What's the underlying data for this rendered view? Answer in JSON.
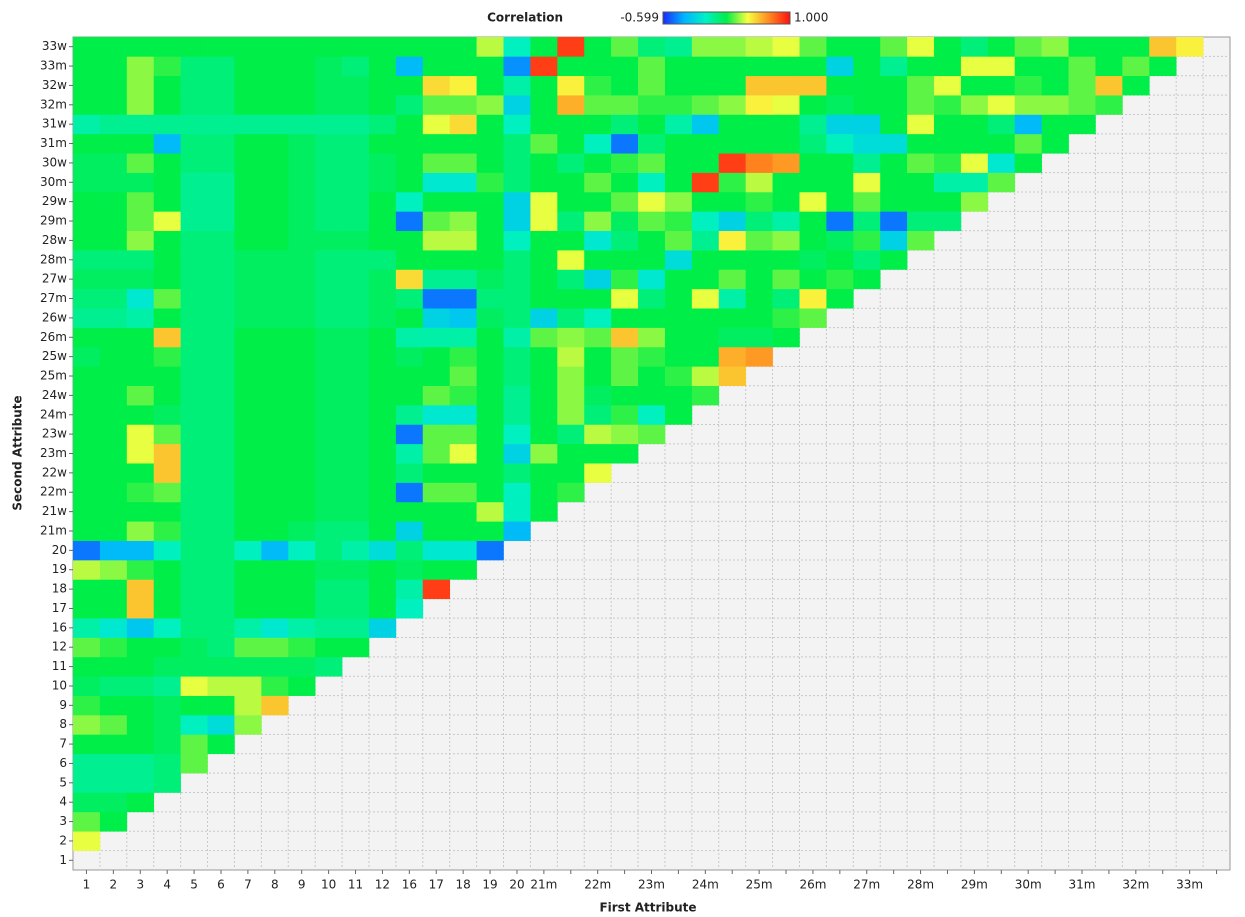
{
  "chart_data": {
    "type": "heatmap",
    "colorbar_label": "Correlation",
    "clim": [
      -0.599,
      1
    ],
    "cticks": [
      -0.599,
      {
        "value": 1,
        "label": "1.000"
      }
    ],
    "colors": [
      "#1a2aff",
      "#00b4ff",
      "#00f0c8",
      "#00ee48",
      "#f8ff40",
      "#ff8a20",
      "#ff1010"
    ],
    "x_label": "First Attribute",
    "y_label": "Second Attribute",
    "x_categories": [
      "1",
      "2",
      "3",
      "4",
      "5",
      "6",
      "7",
      "8",
      "9",
      "10",
      "11",
      "12",
      "16",
      "17",
      "18",
      "19",
      "20",
      "21m",
      null,
      "22m",
      null,
      "23m",
      null,
      "24m",
      null,
      "25m",
      null,
      "26m",
      null,
      "27m",
      null,
      "28m",
      null,
      "29m",
      null,
      "30m",
      null,
      "31m",
      null,
      "32m",
      null,
      "33m",
      null
    ],
    "y_categories": [
      "1",
      "2",
      "3",
      "4",
      "5",
      "6",
      "7",
      "8",
      "9",
      "10",
      "11",
      "12",
      "16",
      "17",
      "18",
      "19",
      "20",
      "21m",
      "21w",
      "22m",
      "22w",
      "23m",
      "23w",
      "24m",
      "24w",
      "25m",
      "25w",
      "26m",
      "26w",
      "27m",
      "27w",
      "28m",
      "28w",
      "29m",
      "29w",
      "30m",
      "30w",
      "31m",
      "31w",
      "32m",
      "32w",
      "33m",
      "33w"
    ],
    "values": [
      [],
      [
        0.45
      ],
      [
        0.3,
        0.2
      ],
      [
        0.15,
        0.15,
        0.2
      ],
      [
        0.05,
        0.05,
        0.05,
        0.1
      ],
      [
        0.05,
        0.05,
        0.05,
        0.1,
        0.3
      ],
      [
        0.2,
        0.2,
        0.2,
        0.15,
        0.3,
        0.2
      ],
      [
        0.35,
        0.3,
        0.2,
        0.15,
        -0.05,
        -0.15,
        0.35
      ],
      [
        0.25,
        0.2,
        0.2,
        0.15,
        0.2,
        0.2,
        0.4,
        0.6
      ],
      [
        0.15,
        0.1,
        0.1,
        0.05,
        0.45,
        0.4,
        0.4,
        0.25,
        0.2
      ],
      [
        0.2,
        0.2,
        0.2,
        0.15,
        0.15,
        0.15,
        0.15,
        0.15,
        0.15,
        0.1
      ],
      [
        0.3,
        0.25,
        0.2,
        0.2,
        0.15,
        0.1,
        0.3,
        0.3,
        0.25,
        0.2,
        0.2
      ],
      [
        0,
        -0.1,
        -0.25,
        -0.05,
        0.1,
        0.1,
        0,
        -0.1,
        0,
        0.05,
        0.05,
        -0.2
      ],
      [
        0.2,
        0.2,
        0.6,
        0.2,
        0.1,
        0.1,
        0.2,
        0.2,
        0.2,
        0.1,
        0.1,
        0.2,
        -0.05
      ],
      [
        0.2,
        0.2,
        0.6,
        0.2,
        0.1,
        0.1,
        0.2,
        0.2,
        0.2,
        0.1,
        0.1,
        0.2,
        0,
        0.9
      ],
      [
        0.4,
        0.35,
        0.25,
        0.2,
        0.1,
        0.1,
        0.2,
        0.2,
        0.2,
        0.15,
        0.15,
        0.2,
        0.15,
        0.2,
        0.2
      ],
      [
        -0.45,
        -0.3,
        -0.3,
        -0.05,
        0.1,
        0.1,
        -0.05,
        -0.3,
        -0.05,
        0.1,
        0,
        -0.15,
        0.1,
        -0.1,
        -0.1,
        -0.45
      ],
      [
        0.2,
        0.2,
        0.35,
        0.25,
        0.1,
        0.1,
        0.2,
        0.2,
        0.15,
        0.1,
        0.1,
        0.2,
        -0.2,
        0.2,
        0.2,
        0.2,
        -0.3
      ],
      [
        0.2,
        0.2,
        0.2,
        0.2,
        0.1,
        0.1,
        0.2,
        0.2,
        0.2,
        0.15,
        0.15,
        0.2,
        0.2,
        0.2,
        0.2,
        0.4,
        -0.05,
        0.2
      ],
      [
        0.2,
        0.2,
        0.25,
        0.3,
        0.1,
        0.1,
        0.2,
        0.2,
        0.2,
        0.15,
        0.15,
        0.2,
        -0.45,
        0.3,
        0.3,
        0.2,
        -0.05,
        0.2,
        0.25
      ],
      [
        0.2,
        0.2,
        0.2,
        0.6,
        0.1,
        0.1,
        0.2,
        0.2,
        0.2,
        0.15,
        0.15,
        0.2,
        0.1,
        0.2,
        0.2,
        0.2,
        0.1,
        0.2,
        0.2,
        0.45
      ],
      [
        0.2,
        0.2,
        0.45,
        0.6,
        0.1,
        0.1,
        0.2,
        0.2,
        0.2,
        0.15,
        0.15,
        0.2,
        0,
        0.3,
        0.45,
        0.2,
        -0.2,
        0.35,
        0.2,
        0.2,
        0.2
      ],
      [
        0.2,
        0.2,
        0.45,
        0.3,
        0.1,
        0.1,
        0.2,
        0.2,
        0.2,
        0.15,
        0.15,
        0.2,
        -0.45,
        0.3,
        0.3,
        0.2,
        -0.05,
        0.2,
        0.1,
        0.4,
        0.35,
        0.3
      ],
      [
        0.2,
        0.2,
        0.2,
        0.15,
        0.1,
        0.1,
        0.2,
        0.2,
        0.2,
        0.15,
        0.15,
        0.2,
        0.05,
        -0.1,
        -0.1,
        0.2,
        0.05,
        0.2,
        0.35,
        0.1,
        0.25,
        -0.05,
        0.2
      ],
      [
        0.2,
        0.2,
        0.3,
        0.2,
        0.1,
        0.1,
        0.2,
        0.2,
        0.2,
        0.15,
        0.15,
        0.2,
        0.2,
        0.3,
        0.25,
        0.2,
        0.05,
        0.2,
        0.35,
        0.15,
        0.2,
        0.2,
        0.2,
        0.25
      ],
      [
        0.2,
        0.2,
        0.2,
        0.2,
        0.1,
        0.1,
        0.2,
        0.2,
        0.2,
        0.15,
        0.15,
        0.2,
        0.2,
        0.2,
        0.3,
        0.2,
        0.1,
        0.2,
        0.35,
        0.2,
        0.3,
        0.2,
        0.25,
        0.4,
        0.6
      ],
      [
        0.15,
        0.2,
        0.2,
        0.25,
        0.1,
        0.1,
        0.2,
        0.2,
        0.2,
        0.15,
        0.15,
        0.2,
        0.15,
        0.2,
        0.25,
        0.2,
        0.1,
        0.2,
        0.4,
        0.2,
        0.3,
        0.25,
        0.2,
        0.2,
        0.65,
        0.7
      ],
      [
        0.2,
        0.2,
        0.2,
        0.6,
        0.1,
        0.1,
        0.2,
        0.2,
        0.2,
        0.15,
        0.15,
        0.2,
        0,
        0,
        0,
        0.2,
        0,
        0.3,
        0.35,
        0.3,
        0.6,
        0.35,
        0.2,
        0.2,
        0.15,
        0.15,
        0.2
      ],
      [
        0.05,
        0.05,
        0,
        0.2,
        0.1,
        0.1,
        0.15,
        0.15,
        0.15,
        0.1,
        0.1,
        0.15,
        0.2,
        -0.2,
        -0.25,
        0.15,
        0.1,
        -0.2,
        0.1,
        -0.05,
        0.2,
        0.2,
        0.2,
        0.2,
        0.2,
        0.2,
        0.25,
        0.3
      ],
      [
        0.1,
        0.1,
        -0.1,
        0.3,
        0.1,
        0.1,
        0.15,
        0.15,
        0.15,
        0.1,
        0.1,
        0.15,
        0.1,
        -0.45,
        -0.45,
        0.1,
        0.1,
        0.2,
        0.2,
        0.2,
        0.45,
        0.1,
        0.2,
        0.45,
        0,
        0.2,
        0.1,
        0.5,
        0.2
      ],
      [
        0.15,
        0.15,
        0.15,
        0.2,
        0.1,
        0.1,
        0.15,
        0.15,
        0.15,
        0.1,
        0.1,
        0.15,
        0.55,
        0.05,
        0.05,
        0.15,
        0.1,
        0.2,
        0.1,
        -0.2,
        0.25,
        -0.1,
        0.2,
        0.2,
        0.3,
        0.2,
        0.3,
        0.2,
        0.25,
        0.2
      ],
      [
        0.1,
        0.1,
        0.1,
        0.2,
        0.1,
        0.1,
        0.15,
        0.15,
        0.15,
        0.1,
        0.1,
        0.1,
        0.2,
        0.2,
        0.2,
        0.2,
        0.1,
        0.2,
        0.45,
        0.2,
        0.2,
        0.2,
        -0.15,
        0.2,
        0.2,
        0.2,
        0.2,
        0.15,
        0.2,
        0.1,
        0.2
      ],
      [
        0.2,
        0.2,
        0.35,
        0.2,
        0.1,
        0.1,
        0.2,
        0.2,
        0.15,
        0.15,
        0.15,
        0.2,
        0.2,
        0.4,
        0.4,
        0.2,
        -0.05,
        0.2,
        0.2,
        -0.1,
        0.1,
        0.2,
        0.3,
        0.05,
        0.5,
        0.3,
        0.35,
        0.2,
        0.15,
        0.25,
        -0.2,
        0.3
      ],
      [
        0.2,
        0.2,
        0.3,
        0.45,
        0.05,
        0.05,
        0.2,
        0.2,
        0.15,
        0.1,
        0.1,
        0.2,
        -0.45,
        0.3,
        0.35,
        0.2,
        -0.2,
        0.45,
        0.1,
        0.35,
        0.15,
        0.3,
        0.25,
        -0.05,
        -0.2,
        0.1,
        0,
        0.2,
        -0.45,
        0.1,
        -0.45,
        0.1,
        0.1
      ],
      [
        0.2,
        0.2,
        0.3,
        0.2,
        0.05,
        0.05,
        0.2,
        0.2,
        0.15,
        0.1,
        0.1,
        0.2,
        -0.05,
        0.2,
        0.2,
        0.2,
        -0.2,
        0.45,
        0.2,
        0.2,
        0.3,
        0.45,
        0.35,
        0.2,
        0.2,
        0.25,
        0.2,
        0.45,
        0.2,
        0.3,
        0.2,
        0.2,
        0.2,
        0.35
      ],
      [
        0.15,
        0.15,
        0.15,
        0.2,
        0.05,
        0.05,
        0.2,
        0.2,
        0.15,
        0.1,
        0.1,
        0.15,
        0.2,
        -0.1,
        -0.1,
        0.25,
        0.1,
        0.2,
        0.2,
        0.3,
        0.2,
        -0.05,
        0.2,
        0.9,
        0.25,
        0.4,
        0.2,
        0.2,
        0.2,
        0.45,
        0.2,
        0.2,
        0,
        0,
        0.3
      ],
      [
        0.15,
        0.15,
        0.3,
        0.2,
        0.1,
        0.1,
        0.2,
        0.2,
        0.15,
        0.1,
        0.1,
        0.15,
        0.2,
        0.3,
        0.3,
        0.2,
        0.1,
        0.2,
        0.1,
        0.2,
        0.25,
        0.3,
        0.2,
        0.2,
        0.9,
        0.75,
        0.7,
        0.2,
        0.2,
        0.05,
        0.2,
        0.3,
        0.25,
        0.45,
        -0.1,
        0.2
      ],
      [
        0.2,
        0.2,
        0.2,
        -0.3,
        0.1,
        0.1,
        0.2,
        0.2,
        0.15,
        0.1,
        0.1,
        0.2,
        0.2,
        0.2,
        0.2,
        0.2,
        0.1,
        0.3,
        0.2,
        -0.05,
        -0.45,
        0.1,
        0.2,
        0.2,
        0.2,
        0.2,
        0.2,
        0.1,
        -0.05,
        -0.15,
        -0.15,
        0.2,
        0.2,
        0.2,
        0.2,
        0.3,
        0.2
      ],
      [
        0,
        0.05,
        0.05,
        0.05,
        0.05,
        0.05,
        0.05,
        0.05,
        0.05,
        0.05,
        0.05,
        0.1,
        0.2,
        0.45,
        0.55,
        0.2,
        -0.05,
        0.2,
        0.2,
        0.2,
        0.1,
        0.2,
        0,
        -0.25,
        0.2,
        0.2,
        0.2,
        0.05,
        -0.2,
        -0.2,
        0.2,
        0.45,
        0.2,
        0.2,
        0.1,
        -0.3,
        0.2,
        0.2
      ],
      [
        0.2,
        0.2,
        0.35,
        0.2,
        0.1,
        0.1,
        0.2,
        0.2,
        0.2,
        0.15,
        0.15,
        0.2,
        0.1,
        0.3,
        0.3,
        0.35,
        -0.2,
        0.2,
        0.65,
        0.3,
        0.3,
        0.25,
        0.25,
        0.3,
        0.35,
        0.5,
        0.45,
        0.2,
        0.15,
        0.2,
        0.2,
        0.3,
        0.25,
        0.35,
        0.45,
        0.35,
        0.35,
        0.3,
        0.25
      ],
      [
        0.2,
        0.2,
        0.35,
        0.2,
        0.1,
        0.1,
        0.2,
        0.2,
        0.2,
        0.15,
        0.15,
        0.2,
        0.2,
        0.55,
        0.5,
        0.2,
        0,
        0.2,
        0.5,
        0.25,
        0.2,
        0.3,
        0.2,
        0.2,
        0.2,
        0.6,
        0.6,
        0.6,
        0.2,
        0.2,
        0.2,
        0.3,
        0.45,
        0.2,
        0.2,
        0.25,
        0.2,
        0.3,
        0.6,
        0.2
      ],
      [
        0.2,
        0.2,
        0.35,
        0.25,
        0.1,
        0.1,
        0.2,
        0.2,
        0.2,
        0.15,
        0.1,
        0.2,
        -0.3,
        0.2,
        0.2,
        0.2,
        -0.4,
        0.9,
        0.2,
        0.2,
        0.2,
        0.3,
        0.2,
        0.2,
        0.2,
        0.2,
        0.2,
        0.2,
        -0.2,
        0.2,
        0.05,
        0.2,
        0.2,
        0.45,
        0.45,
        0.2,
        0.2,
        0.3,
        0.2,
        0.3,
        0.2
      ],
      [
        0.2,
        0.2,
        0.2,
        0.2,
        0.2,
        0.2,
        0.2,
        0.2,
        0.2,
        0.2,
        0.2,
        0.2,
        0.2,
        0.2,
        0.2,
        0.4,
        -0.05,
        0.2,
        0.9,
        0.2,
        0.3,
        0.1,
        0.05,
        0.35,
        0.35,
        0.4,
        0.45,
        0.3,
        0.2,
        0.2,
        0.3,
        0.45,
        0.2,
        0.1,
        0.2,
        0.3,
        0.35,
        0.2,
        0.2,
        0.2,
        0.6,
        0.5
      ]
    ]
  }
}
